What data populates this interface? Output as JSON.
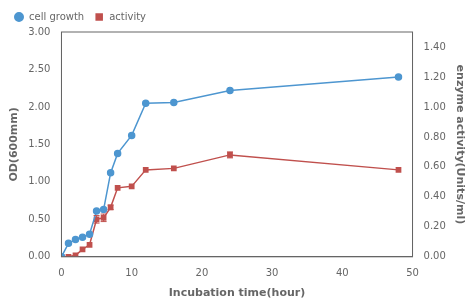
{
  "chart_data": {
    "type": "line",
    "xlabel": "Incubation time(hour)",
    "ylabel": "OD(600mm)",
    "y2label": "enzyme activity(Units/ml)",
    "x": [
      0,
      1,
      2,
      3,
      4,
      5,
      6,
      7,
      8,
      10,
      12,
      16,
      24,
      48
    ],
    "series": [
      {
        "name": "cell growth",
        "color": "#4d96d0",
        "marker": "o",
        "axis": "y",
        "values": [
          0.0,
          0.18,
          0.23,
          0.26,
          0.3,
          0.61,
          0.63,
          1.12,
          1.38,
          1.62,
          2.05,
          2.06,
          2.22,
          2.4
        ]
      },
      {
        "name": "activity",
        "color": "#c0504d",
        "marker": "s",
        "axis": "y2",
        "values": [
          0.0,
          0.0,
          0.01,
          0.05,
          0.08,
          0.25,
          0.26,
          0.33,
          0.46,
          0.47,
          0.58,
          0.59,
          0.68,
          0.58
        ],
        "yerr": [
          0.0,
          0.0,
          0.0,
          0.0,
          0.0,
          0.025,
          0.025,
          0.015,
          0.0,
          0.0,
          0.0,
          0.0,
          0.02,
          0.0
        ]
      }
    ],
    "xlim": [
      0,
      50
    ],
    "xticks": [
      0,
      10,
      20,
      30,
      40,
      50
    ],
    "ylim": [
      0.0,
      3.0
    ],
    "yticks": [
      {
        "value": 0.0,
        "label": "0.00"
      },
      {
        "value": 0.5,
        "label": "0.50"
      },
      {
        "value": 1.0,
        "label": "1.00"
      },
      {
        "value": 1.5,
        "label": "1.50"
      },
      {
        "value": 2.0,
        "label": "2.00"
      },
      {
        "value": 2.5,
        "label": "2.50"
      },
      {
        "value": 3.0,
        "label": "3.00"
      }
    ],
    "y2lim": [
      0.0,
      1.5
    ],
    "y2ticks": [
      {
        "value": 0.0,
        "label": "0.00"
      },
      {
        "value": 0.2,
        "label": "0.20"
      },
      {
        "value": 0.4,
        "label": "0.40"
      },
      {
        "value": 0.6,
        "label": "0.60"
      },
      {
        "value": 0.8,
        "label": "0.80"
      },
      {
        "value": 1.0,
        "label": "1.00"
      },
      {
        "value": 1.2,
        "label": "1.20"
      },
      {
        "value": 1.4,
        "label": "1.40"
      }
    ],
    "legend": "upper left",
    "grid": false
  }
}
